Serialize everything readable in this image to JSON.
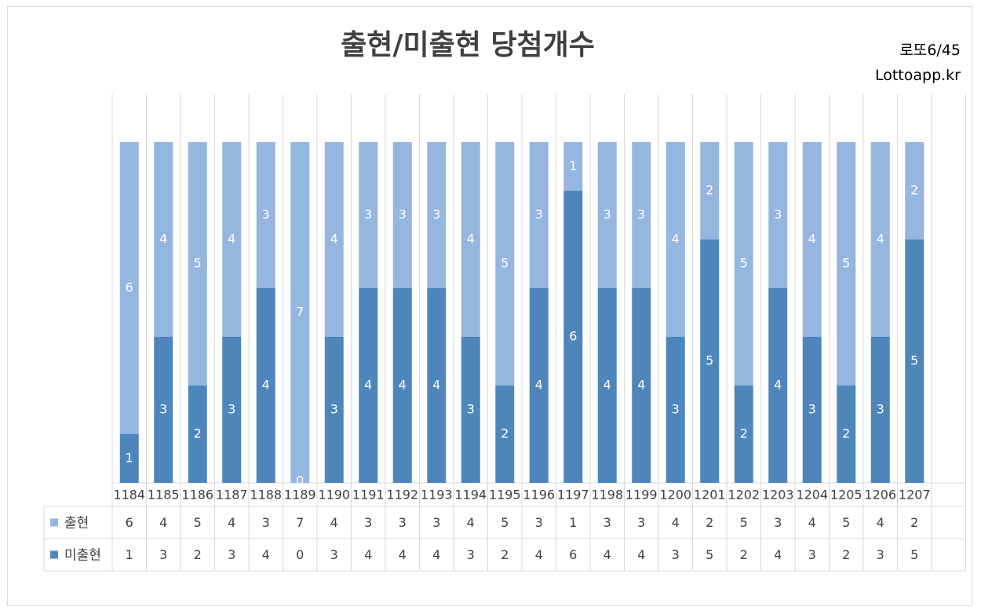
{
  "title": "출현/미출현 당첨개수",
  "subtitle": {
    "line1": "로또6/45",
    "line2": "Lottoapp.kr"
  },
  "colors": {
    "shown": "#95B6DF",
    "unshown": "#4E86BC",
    "grid": "#d9d9d9",
    "text": "#404040"
  },
  "chart_data": {
    "type": "bar",
    "stacked": true,
    "categories": [
      "1184",
      "1185",
      "1186",
      "1187",
      "1188",
      "1189",
      "1190",
      "1191",
      "1192",
      "1193",
      "1194",
      "1195",
      "1196",
      "1197",
      "1198",
      "1199",
      "1200",
      "1201",
      "1202",
      "1203",
      "1204",
      "1205",
      "1206",
      "1207"
    ],
    "series": [
      {
        "name": "미출현",
        "values": [
          1,
          3,
          2,
          3,
          4,
          0,
          3,
          4,
          4,
          4,
          3,
          2,
          4,
          6,
          4,
          4,
          3,
          5,
          2,
          4,
          3,
          2,
          3,
          5
        ]
      },
      {
        "name": "출현",
        "values": [
          6,
          4,
          5,
          4,
          3,
          7,
          4,
          3,
          3,
          3,
          4,
          5,
          3,
          1,
          3,
          3,
          4,
          2,
          5,
          3,
          4,
          5,
          4,
          2
        ]
      }
    ],
    "ylim": [
      0,
      7
    ],
    "data_table": true,
    "legend": "data-table"
  }
}
